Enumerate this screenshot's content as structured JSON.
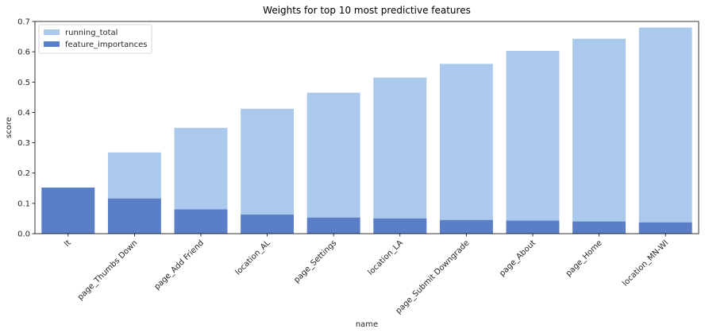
{
  "chart_data": {
    "type": "bar",
    "title": "Weights for top 10 most predictive features",
    "xlabel": "name",
    "ylabel": "score",
    "ylim": [
      0,
      0.7
    ],
    "yticks": [
      "0.0",
      "0.1",
      "0.2",
      "0.3",
      "0.4",
      "0.5",
      "0.6",
      "0.7"
    ],
    "categories": [
      "lt",
      "page_Thumbs Down",
      "page_Add Friend",
      "location_AL",
      "page_Settings",
      "location_LA",
      "page_Submit Downgrade",
      "page_About",
      "page_Home",
      "location_MN-WI"
    ],
    "series": [
      {
        "name": "running_total",
        "color": "#abc9ed",
        "values": [
          0.152,
          0.268,
          0.349,
          0.412,
          0.465,
          0.515,
          0.56,
          0.603,
          0.643,
          0.68
        ]
      },
      {
        "name": "feature_importances",
        "color": "#5a7fc6",
        "values": [
          0.152,
          0.116,
          0.08,
          0.063,
          0.053,
          0.05,
          0.045,
          0.043,
          0.04,
          0.037
        ]
      }
    ],
    "legend_position": "top-left",
    "grid": false
  }
}
